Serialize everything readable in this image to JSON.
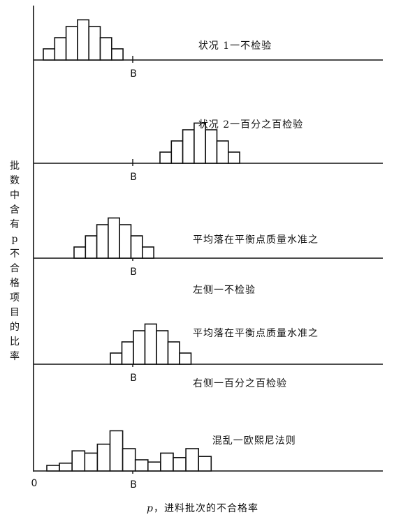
{
  "chart_data": {
    "type": "histogram-stack",
    "ylabel": "批数中含有p不合格项目的比率",
    "xlabel_var": "p",
    "xlabel_text": "，进料批次的不合格率",
    "origin_label": "0",
    "breakeven_label": "B",
    "panels": [
      {
        "title_lines": [
          "状况 1一不检验"
        ],
        "bars": [
          1,
          2,
          3,
          3.6,
          3,
          2,
          1
        ]
      },
      {
        "title_lines": [
          "状况 2一百分之百检验"
        ],
        "bars": [
          1,
          2,
          3,
          3.6,
          3,
          2,
          1
        ]
      },
      {
        "title_lines": [
          "平均落在平衡点质量水准之",
          "左侧一不检验"
        ],
        "bars": [
          1,
          2,
          3,
          3.6,
          3,
          2,
          1
        ]
      },
      {
        "title_lines": [
          "平均落在平衡点质量水准之",
          "右侧一百分之百检验"
        ],
        "bars": [
          1,
          2,
          3,
          3.6,
          3,
          2,
          1
        ]
      },
      {
        "title_lines": [
          "混乱一欧熙尼法则"
        ],
        "bars": [
          0.5,
          0.7,
          1.8,
          1.6,
          2.4,
          3.6,
          2.0,
          1.0,
          0.8,
          1.6,
          1.2,
          2.0,
          1.3
        ]
      }
    ]
  }
}
